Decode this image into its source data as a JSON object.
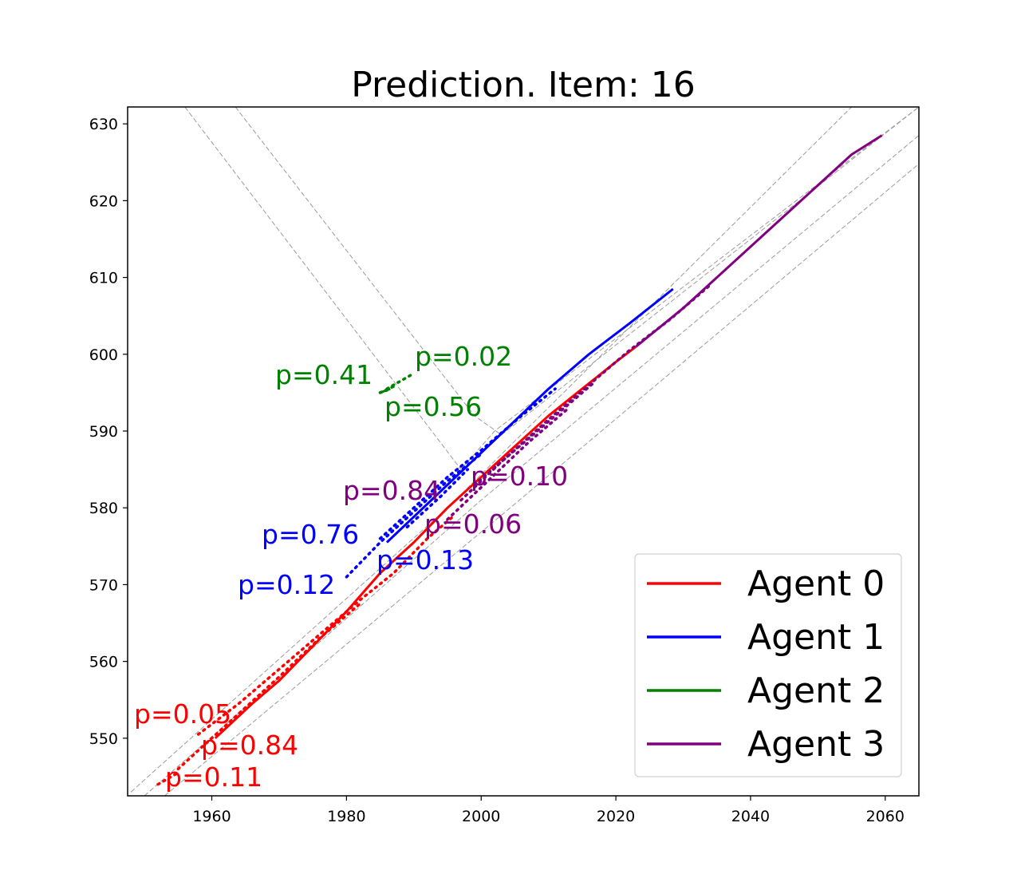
{
  "chart_data": {
    "type": "line",
    "title": "Prediction. Item: 16",
    "xlabel": "",
    "ylabel": "",
    "xlim": [
      1947.5,
      2065
    ],
    "ylim": [
      542.5,
      632.2
    ],
    "xticks": [
      1960,
      1980,
      2000,
      2020,
      2040,
      2060
    ],
    "yticks": [
      550,
      560,
      570,
      580,
      590,
      600,
      610,
      620,
      630
    ],
    "grid": false,
    "legend_position": "bottom-right",
    "map_lines": [
      [
        [
          1956,
          632.2
        ],
        [
          1997,
          585
        ],
        [
          2002,
          590
        ],
        [
          2065,
          632.2
        ]
      ],
      [
        [
          1963.5,
          632.2
        ],
        [
          1999,
          592
        ],
        [
          2003,
          589.5
        ],
        [
          2065,
          632.2
        ]
      ],
      [
        [
          1948,
          543
        ],
        [
          1995,
          580
        ],
        [
          2055,
          632.2
        ]
      ],
      [
        [
          1950,
          542.5
        ],
        [
          2000,
          581
        ],
        [
          2065,
          628.5
        ]
      ],
      [
        [
          1953,
          542.5
        ],
        [
          2005,
          580.5
        ],
        [
          2065,
          624.8
        ]
      ]
    ],
    "series": [
      {
        "name": "Agent 0",
        "color": "#ff0000",
        "history": [
          [
            1960.5,
            550
          ],
          [
            1966,
            554.5
          ],
          [
            1970,
            557.5
          ],
          [
            1975,
            562
          ],
          [
            1980,
            566.5
          ],
          [
            1985,
            571.5
          ],
          [
            1990,
            575.5
          ],
          [
            1995,
            580
          ],
          [
            2000,
            584
          ],
          [
            2005,
            588
          ],
          [
            2010,
            592
          ],
          [
            2015,
            595.5
          ],
          [
            2020,
            599
          ],
          [
            2023,
            601
          ]
        ],
        "predictions": [
          {
            "label": "p=0.05",
            "points": [
              [
                1958,
                550.5
              ],
              [
                1964,
                554.5
              ],
              [
                1970,
                559
              ],
              [
                1976,
                563.5
              ],
              [
                1982,
                568
              ],
              [
                1987,
                571.5
              ],
              [
                1992,
                576
              ],
              [
                1996,
                579
              ]
            ]
          },
          {
            "label": "p=0.84",
            "points": [
              [
                1955,
                546
              ],
              [
                1960,
                550
              ],
              [
                1965,
                554
              ],
              [
                1970,
                558
              ],
              [
                1976,
                563
              ],
              [
                1982,
                567.5
              ]
            ]
          },
          {
            "label": "p=0.11",
            "points": [
              [
                1952,
                544
              ],
              [
                1955,
                545.5
              ]
            ]
          }
        ]
      },
      {
        "name": "Agent 1",
        "color": "#0000ff",
        "history": [
          [
            1986,
            575.5
          ],
          [
            1992,
            580.5
          ],
          [
            1998,
            585.5
          ],
          [
            2004,
            590.5
          ],
          [
            2010,
            595.5
          ],
          [
            2016,
            600
          ],
          [
            2022,
            604
          ],
          [
            2028.5,
            608.5
          ]
        ],
        "predictions": [
          {
            "label": "p=0.76",
            "points": [
              [
                1985,
                576
              ],
              [
                1990,
                580
              ],
              [
                1995,
                584
              ],
              [
                2000,
                587.5
              ],
              [
                2006,
                592
              ],
              [
                2011,
                595.5
              ]
            ]
          },
          {
            "label": "p=0.12",
            "points": [
              [
                1980,
                571
              ],
              [
                1985,
                575.5
              ],
              [
                1990,
                579.5
              ],
              [
                1995,
                583.5
              ],
              [
                2000,
                587
              ]
            ]
          },
          {
            "label": "p=0.13",
            "points": [
              [
                1989,
                577.5
              ],
              [
                1994,
                581.5
              ],
              [
                1998,
                585
              ]
            ]
          }
        ]
      },
      {
        "name": "Agent 2",
        "color": "#008000",
        "history": [
          [
            1985,
            595
          ],
          [
            1986.5,
            595.5
          ]
        ],
        "predictions": [
          {
            "label": "p=0.41",
            "points": [
              [
                1985,
                595
              ],
              [
                1986,
                595.3
              ]
            ]
          },
          {
            "label": "p=0.02",
            "points": [
              [
                1986,
                595.5
              ],
              [
                1988,
                596.5
              ],
              [
                1990,
                597.5
              ]
            ]
          },
          {
            "label": "p=0.56",
            "points": [
              [
                1985,
                595
              ],
              [
                1987,
                595.8
              ]
            ]
          }
        ]
      },
      {
        "name": "Agent 3",
        "color": "#800080",
        "history": [
          [
            2023,
            601
          ],
          [
            2030,
            606
          ],
          [
            2035,
            610
          ],
          [
            2040,
            614
          ],
          [
            2045,
            618
          ],
          [
            2050,
            622
          ],
          [
            2055,
            626
          ],
          [
            2059.5,
            628.5
          ]
        ],
        "predictions": [
          {
            "label": "p=0.84",
            "points": [
              [
                1997,
                581
              ],
              [
                2003,
                586
              ],
              [
                2010,
                591.5
              ],
              [
                2016,
                596
              ],
              [
                2022,
                600.5
              ],
              [
                2028,
                604.5
              ],
              [
                2034,
                609
              ]
            ]
          },
          {
            "label": "p=0.10",
            "points": [
              [
                1999,
                583
              ],
              [
                2005,
                587.5
              ],
              [
                2011,
                592
              ],
              [
                2017,
                596.5
              ]
            ]
          },
          {
            "label": "p=0.06",
            "points": [
              [
                1995,
                578.5
              ],
              [
                2001,
                583.5
              ],
              [
                2007,
                588.5
              ],
              [
                2013,
                593
              ]
            ]
          }
        ]
      }
    ]
  }
}
